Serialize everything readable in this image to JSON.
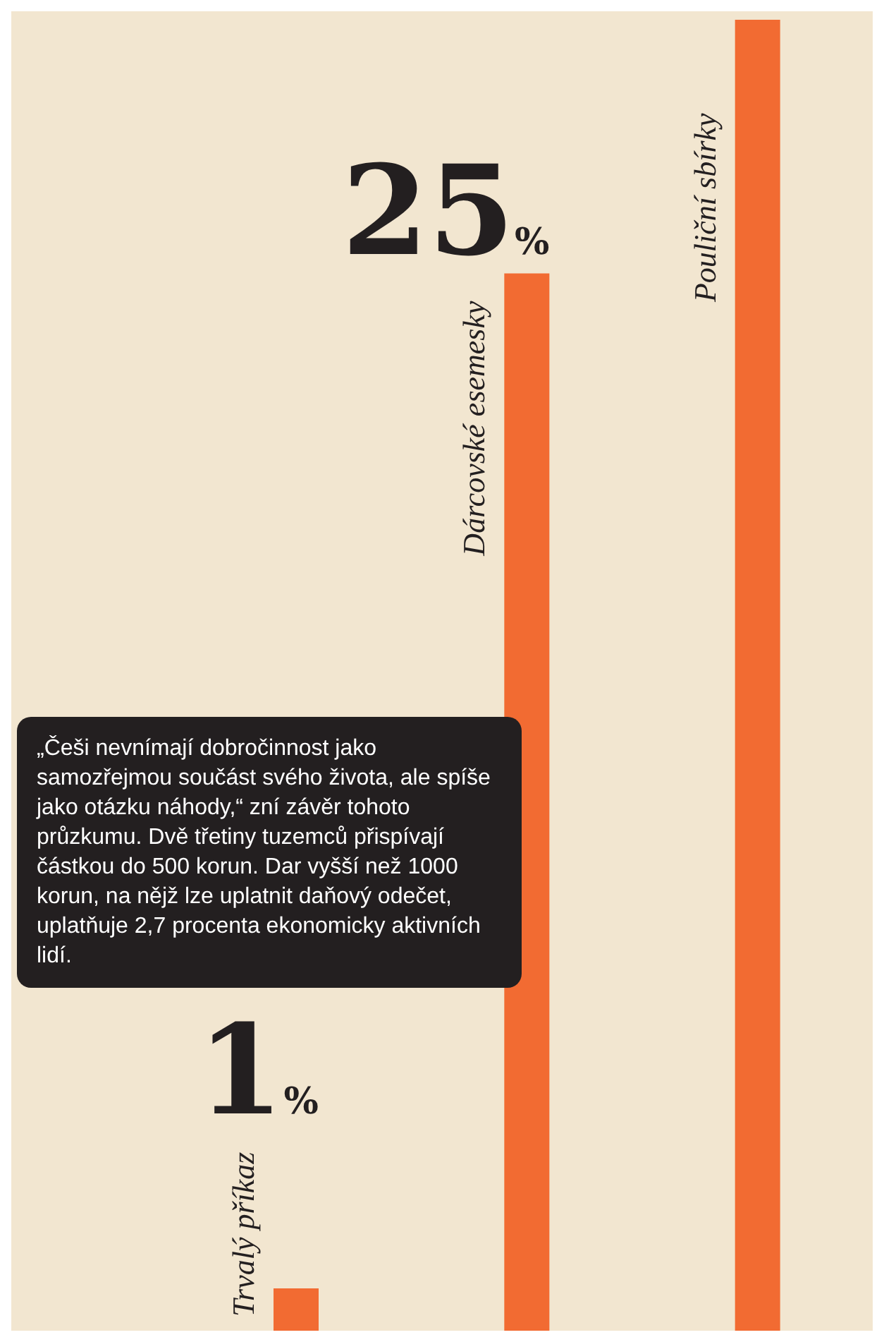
{
  "chart_data": {
    "type": "bar",
    "categories": [
      "Trvalý příkaz",
      "Dárcovské esemesky",
      "Pouliční sbírky"
    ],
    "values": [
      1,
      25,
      31
    ],
    "value_labels": [
      "1%",
      "25%",
      null
    ],
    "color": "#f26b32",
    "annotations": [
      "„Češi nevnímají dobročinnost jako samozřejmou součást svého života, ale spíše jako otázku náhody,“ zní závěr tohoto průzkumu. Dvě třetiny tuzemců přispívají částkou do 500 korun. Dar vyšší než 1000 korun, na nějž lze uplatnit daňový odečet, uplatňuje 2,7 procenta ekonomicky aktivních lidí."
    ]
  }
}
